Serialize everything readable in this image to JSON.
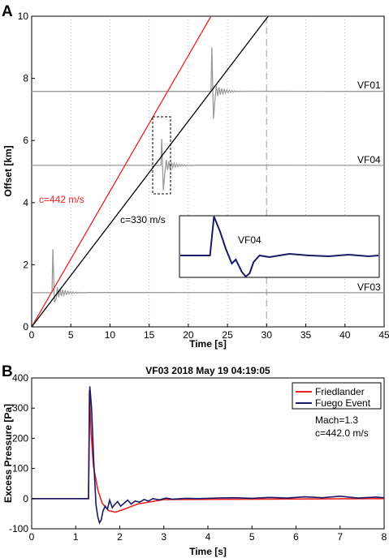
{
  "chart_data": [
    {
      "panel": "A",
      "type": "line",
      "xlabel": "Time [s]",
      "ylabel": "Offset [km]",
      "xlim": [
        0,
        45
      ],
      "ylim": [
        0,
        10
      ],
      "xticks": [
        "0",
        "5",
        "10",
        "15",
        "20",
        "25",
        "30",
        "35",
        "40",
        "45"
      ],
      "yticks": [
        "0",
        "2",
        "4",
        "6",
        "8",
        "10"
      ],
      "grid": "vertical dotted",
      "dashed_vline_x": 30,
      "colors": {
        "red": "#ee2222",
        "black": "#000000",
        "gray": "#999999",
        "navy": "#1a1a66"
      },
      "series": [
        {
          "name": "c=442 m/s",
          "color": "#ee2222",
          "x": [
            0,
            22.9
          ],
          "y": [
            0,
            10
          ]
        },
        {
          "name": "c=330 m/s",
          "color": "#000000",
          "x": [
            0,
            30.2
          ],
          "y": [
            0,
            10
          ]
        }
      ],
      "stations": [
        {
          "name": "VF01",
          "offset": 7.58,
          "arrival": 22.9,
          "peak": 9.0,
          "trough": 6.7
        },
        {
          "name": "VF04",
          "offset": 5.2,
          "arrival": 16.5,
          "peak": 6.05,
          "trough": 4.4
        },
        {
          "name": "VF03",
          "offset": 1.1,
          "arrival": 2.6,
          "peak": 2.5,
          "trough": 0.78
        }
      ],
      "annotations": [
        "c=442 m/s",
        "c=330 m/s"
      ],
      "inset": {
        "label": "VF04"
      }
    },
    {
      "panel": "B",
      "type": "line",
      "title": "VF03 2018 May 19 04:19:05",
      "xlabel": "Time [s]",
      "ylabel": "Excess Pressure [Pa]",
      "xlim": [
        0,
        8
      ],
      "ylim": [
        -100,
        400
      ],
      "xticks": [
        "0",
        "1",
        "2",
        "3",
        "4",
        "5",
        "6",
        "7",
        "8"
      ],
      "yticks": [
        "-100",
        "0",
        "100",
        "200",
        "300",
        "400"
      ],
      "grid": "none",
      "legend": "top-right",
      "series": [
        {
          "name": "Friedlander",
          "color": "#ee2222",
          "x": [
            0,
            1.29,
            1.31,
            1.35,
            1.4,
            1.5,
            1.6,
            1.75,
            1.9,
            2.1,
            2.4,
            3.0,
            8.0
          ],
          "y": [
            0,
            0,
            360,
            215,
            110,
            30,
            -15,
            -40,
            -45,
            -35,
            -18,
            -3,
            0
          ]
        },
        {
          "name": "Fuego Event",
          "color": "#1a1a66",
          "x": [
            0,
            1.29,
            1.32,
            1.36,
            1.41,
            1.46,
            1.5,
            1.54,
            1.58,
            1.62,
            1.67,
            1.72,
            1.77,
            1.83,
            1.88,
            1.95,
            2.02,
            2.1,
            2.18,
            2.26,
            2.35,
            2.45,
            2.55,
            2.65,
            2.75,
            2.9,
            3.05,
            3.2,
            3.5,
            3.8,
            4.2,
            4.6,
            5.0,
            5.4,
            5.8,
            6.2,
            6.6,
            7.0,
            7.4,
            7.8,
            8.0
          ],
          "y": [
            0,
            0,
            372,
            300,
            120,
            -20,
            -60,
            -80,
            -70,
            -40,
            -25,
            -35,
            -5,
            -30,
            -20,
            -10,
            -25,
            -15,
            -5,
            -18,
            -8,
            -12,
            -3,
            -8,
            0,
            -4,
            2,
            -2,
            1,
            0,
            2,
            3,
            1,
            4,
            2,
            6,
            3,
            8,
            2,
            5,
            3
          ]
        }
      ],
      "annotations": [
        "Mach=1.3",
        "c=442.0 m/s"
      ]
    }
  ]
}
